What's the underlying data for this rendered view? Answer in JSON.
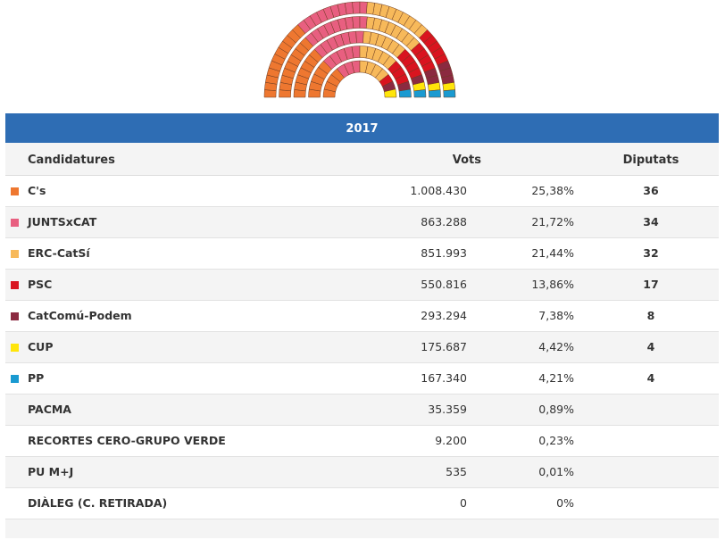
{
  "chart_data": {
    "type": "table",
    "title": "2017",
    "hemicycle_total_seats": 135,
    "columns": [
      "Candidatures",
      "Vots",
      "",
      "Diputats"
    ],
    "rows": [
      {
        "name": "C's",
        "votes": "1.008.430",
        "pct": "25,38%",
        "seats": 36,
        "color": "#ee7730"
      },
      {
        "name": "JUNTSxCAT",
        "votes": "863.288",
        "pct": "21,72%",
        "seats": 34,
        "color": "#e85f80"
      },
      {
        "name": "ERC-CatSí",
        "votes": "851.993",
        "pct": "21,44%",
        "seats": 32,
        "color": "#f7b95a"
      },
      {
        "name": "PSC",
        "votes": "550.816",
        "pct": "13,86%",
        "seats": 17,
        "color": "#d9141f"
      },
      {
        "name": "CatComú-Podem",
        "votes": "293.294",
        "pct": "7,38%",
        "seats": 8,
        "color": "#8b2a40"
      },
      {
        "name": "CUP",
        "votes": "175.687",
        "pct": "4,42%",
        "seats": 4,
        "color": "#ffe50a"
      },
      {
        "name": "PP",
        "votes": "167.340",
        "pct": "4,21%",
        "seats": 4,
        "color": "#1a9ad1"
      },
      {
        "name": "PACMA",
        "votes": "35.359",
        "pct": "0,89%",
        "seats": null,
        "color": null
      },
      {
        "name": "RECORTES CERO-GRUPO VERDE",
        "votes": "9.200",
        "pct": "0,23%",
        "seats": null,
        "color": null
      },
      {
        "name": "PU M+J",
        "votes": "535",
        "pct": "0,01%",
        "seats": null,
        "color": null
      },
      {
        "name": "DIÀLEG (C. RETIRADA)",
        "votes": "0",
        "pct": "0%",
        "seats": null,
        "color": null
      }
    ]
  },
  "header_color": "#2e6db4"
}
